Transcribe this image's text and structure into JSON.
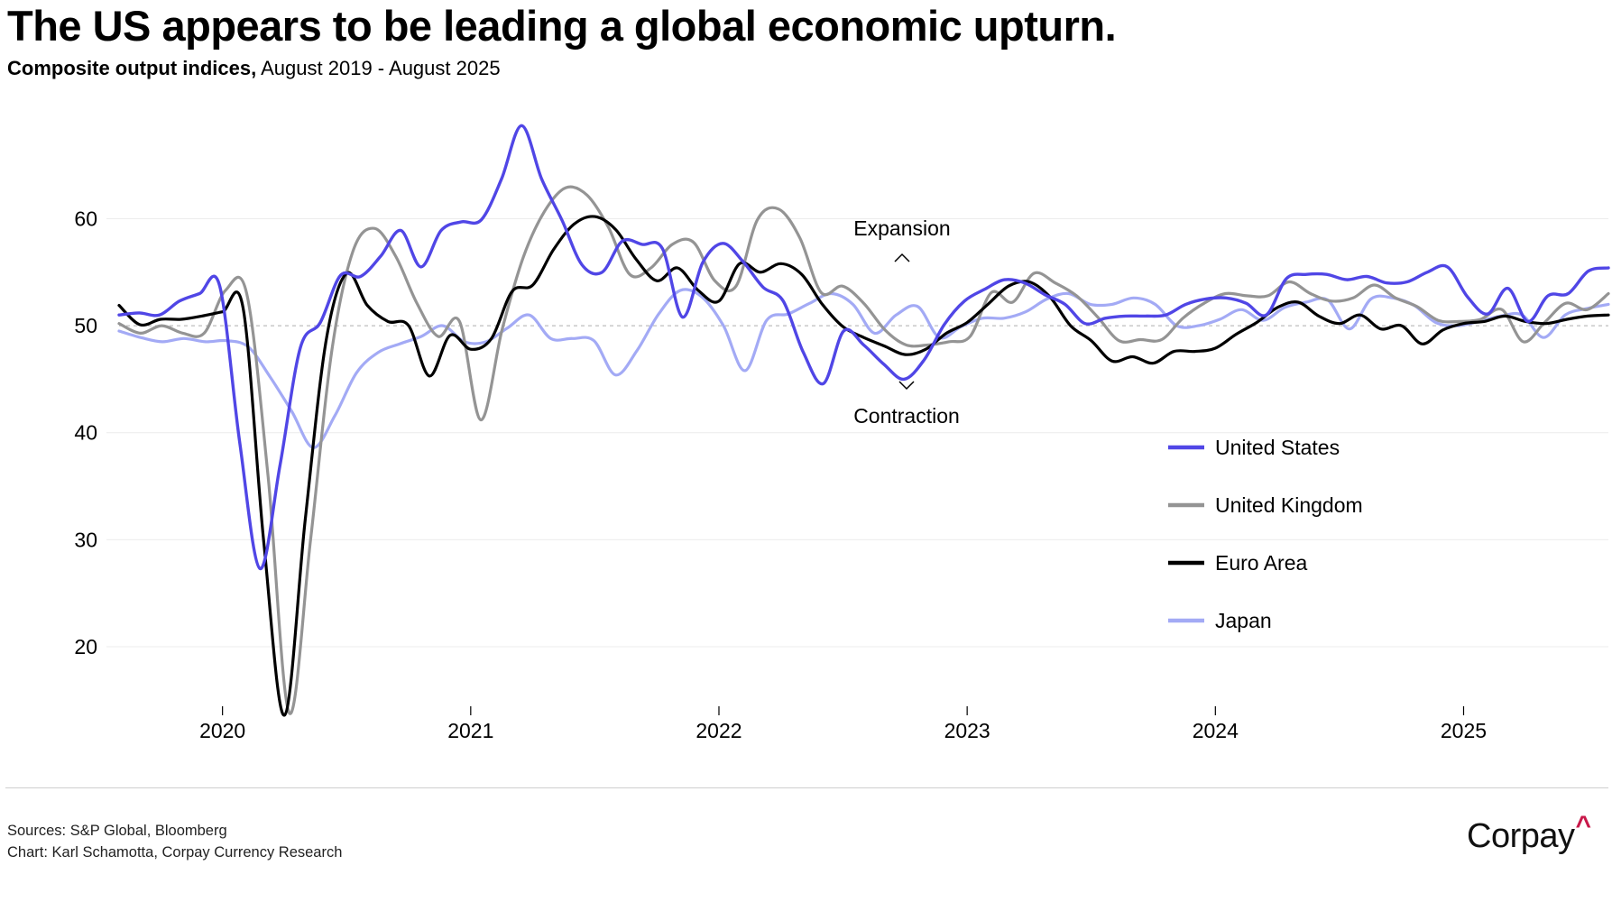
{
  "title": "The US appears to be leading a global economic upturn.",
  "subtitle_bold": "Composite output indices,",
  "subtitle_rest": " August 2019 - August 2025",
  "footer": {
    "sources": "Sources: S&P Global, Bloomberg",
    "credit": "Chart: Karl Schamotta, Corpay Currency Research",
    "logo_text": "Corpay",
    "logo_mark": "^"
  },
  "chart_data": {
    "type": "line",
    "title": "The US appears to be leading a global economic upturn.",
    "subtitle": "Composite output indices, August 2019 - August 2025",
    "xlabel": "",
    "ylabel": "",
    "x_start": "2019-08",
    "x_end": "2025-08",
    "xticks": [
      "2020",
      "2021",
      "2022",
      "2023",
      "2024",
      "2025"
    ],
    "ylim": [
      13,
      71
    ],
    "yticks": [
      20,
      30,
      40,
      50,
      60
    ],
    "reference_line": 50,
    "grid": true,
    "legend_position": "lower-right",
    "annotations": [
      "Expansion",
      "Contraction"
    ],
    "colors": {
      "United States": "#5046e6",
      "United Kingdom": "#949494",
      "Euro Area": "#000000",
      "Japan": "#a3aaf5"
    },
    "series": [
      {
        "name": "United States",
        "values": [
          51.0,
          51.2,
          51.0,
          52.3,
          53.0,
          53.7,
          39.0,
          27.3,
          37.0,
          47.9,
          50.3,
          54.7,
          54.6,
          56.5,
          58.9,
          55.5,
          58.9,
          59.7,
          59.9,
          63.7,
          68.7,
          63.7,
          59.9,
          55.7,
          55.0,
          57.9,
          57.6,
          57.2,
          50.8,
          55.9,
          57.7,
          56.0,
          53.6,
          52.3,
          47.5,
          44.6,
          49.5,
          48.2,
          46.4,
          45.0,
          46.8,
          50.1,
          52.3,
          53.4,
          54.3,
          54.0,
          52.9,
          52.0,
          50.2,
          50.7,
          50.9,
          50.9,
          51.0,
          52.0,
          52.5,
          52.6,
          52.1,
          51.0,
          54.4,
          54.8,
          54.8,
          54.3,
          54.6,
          54.0,
          54.1,
          55.0,
          55.5,
          52.7,
          51.1,
          53.5,
          50.4,
          52.8,
          53.0,
          55.1,
          55.4
        ]
      },
      {
        "name": "United Kingdom",
        "values": [
          50.2,
          49.3,
          50.0,
          49.3,
          49.3,
          53.3,
          53.0,
          36.0,
          13.8,
          30.0,
          47.7,
          57.0,
          59.1,
          56.5,
          52.1,
          49.0,
          50.4,
          41.2,
          49.6,
          56.4,
          60.7,
          62.9,
          62.2,
          59.2,
          54.8,
          55.4,
          57.6,
          57.8,
          54.2,
          53.7,
          59.9,
          60.9,
          58.2,
          53.1,
          53.7,
          52.1,
          49.6,
          48.2,
          48.2,
          48.5,
          49.0,
          53.1,
          52.2,
          54.9,
          54.0,
          52.8,
          50.8,
          48.6,
          48.7,
          48.7,
          50.7,
          52.1,
          53.0,
          52.8,
          52.8,
          54.1,
          53.0,
          52.3,
          52.6,
          53.8,
          52.6,
          51.8,
          50.5,
          50.4,
          50.6,
          51.5,
          48.5,
          50.3,
          52.1,
          51.5,
          53.0
        ]
      },
      {
        "name": "Euro Area",
        "values": [
          51.9,
          50.1,
          50.6,
          50.6,
          50.9,
          51.3,
          51.6,
          29.7,
          13.6,
          31.9,
          48.5,
          54.9,
          51.9,
          50.4,
          50.0,
          45.3,
          49.1,
          47.8,
          48.8,
          53.2,
          53.8,
          57.1,
          59.5,
          60.2,
          59.0,
          56.2,
          54.2,
          55.4,
          53.3,
          52.3,
          55.8,
          55.0,
          55.8,
          54.8,
          52.0,
          49.9,
          48.9,
          48.1,
          47.3,
          47.8,
          49.3,
          50.3,
          52.0,
          53.7,
          54.1,
          52.7,
          50.0,
          48.6,
          46.7,
          47.1,
          46.5,
          47.6,
          47.6,
          47.9,
          49.2,
          50.3,
          51.7,
          52.2,
          50.9,
          50.2,
          51.0,
          49.7,
          50.0,
          48.3,
          49.6,
          50.2,
          50.4,
          50.9,
          50.4,
          50.2,
          50.6,
          50.9,
          51.0
        ]
      },
      {
        "name": "Japan",
        "values": [
          49.5,
          48.9,
          48.5,
          48.8,
          48.5,
          48.6,
          48.0,
          45.2,
          42.0,
          38.6,
          41.6,
          45.6,
          47.5,
          48.3,
          49.0,
          50.0,
          48.5,
          48.5,
          49.8,
          51.0,
          48.8,
          48.8,
          48.6,
          45.4,
          47.7,
          51.1,
          53.3,
          52.7,
          50.0,
          45.8,
          50.5,
          51.1,
          52.1,
          53.0,
          52.0,
          49.3,
          51.0,
          51.8,
          48.9,
          49.9,
          50.7,
          50.7,
          51.3,
          52.5,
          53.0,
          52.0,
          52.0,
          52.6,
          52.0,
          50.0,
          50.0,
          50.6,
          51.5,
          50.5,
          51.7,
          52.2,
          52.4,
          49.7,
          52.5,
          52.6,
          51.9,
          50.3,
          50.0,
          50.4,
          50.9,
          51.0,
          48.9,
          51.0,
          51.6,
          52.0
        ]
      }
    ]
  }
}
